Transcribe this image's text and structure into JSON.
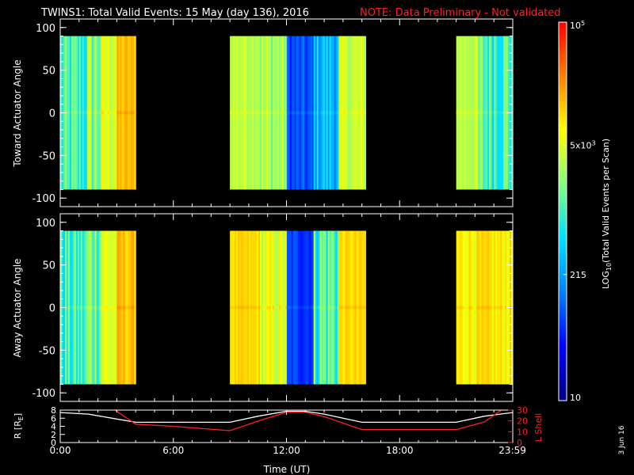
{
  "header": {
    "title": "TWINS1: Total Valid Events: 15 May (day 136), 2016",
    "note": "NOTE: Data Preliminary - Not validated",
    "title_color": "#ffffff",
    "note_color": "#ff2020"
  },
  "footer": {
    "stamp": "3 Jun 16"
  },
  "chart_data": [
    {
      "type": "heatmap",
      "panel": "toward",
      "ylabel": "Toward Actuator Angle",
      "ylim": [
        -110,
        110
      ],
      "yticks": [
        100,
        50,
        0,
        -50,
        -100
      ],
      "xlim": [
        0,
        24
      ],
      "data_angle_range": [
        -90,
        90
      ],
      "segments": [
        {
          "start": 0.0,
          "end": 4.0,
          "profile": "cyan-yellow-orange"
        },
        {
          "start": 9.0,
          "end": 16.2,
          "profile": "yellow-blue-yellow"
        },
        {
          "start": 21.0,
          "end": 24.0,
          "profile": "yellow-cyan"
        }
      ]
    },
    {
      "type": "heatmap",
      "panel": "away",
      "ylabel": "Away Actuator Angle",
      "ylim": [
        -110,
        110
      ],
      "yticks": [
        100,
        50,
        0,
        -50,
        -100
      ],
      "xlim": [
        0,
        24
      ],
      "data_angle_range": [
        -90,
        90
      ],
      "segments": [
        {
          "start": 0.0,
          "end": 4.0,
          "profile": "cyan-yellow-orange"
        },
        {
          "start": 9.0,
          "end": 16.2,
          "profile": "orange-blue-orange"
        },
        {
          "start": 21.0,
          "end": 24.0,
          "profile": "orange"
        }
      ]
    },
    {
      "type": "line",
      "panel": "orbit",
      "ylabel_left": "R [R",
      "ylabel_left_sub": "E",
      "ylabel_left_end": "]",
      "ylabel_right": "L Shell",
      "xlabel": "Time (UT)",
      "xticks": [
        "0:00",
        "6:00",
        "12:00",
        "18:00",
        "23:59"
      ],
      "xtick_hours": [
        0,
        6,
        12,
        18,
        23.983
      ],
      "ylim_left": [
        0,
        8
      ],
      "yticks_left": [
        8,
        6,
        4,
        2,
        0
      ],
      "ylim_right": [
        0,
        30
      ],
      "yticks_right": [
        30,
        20,
        10,
        0
      ],
      "series": [
        {
          "axis": "left",
          "color": "#ffffff",
          "x": [
            0,
            1.5,
            3,
            4,
            6,
            9,
            10.5,
            12,
            13,
            14,
            16,
            18,
            21,
            22.5,
            24
          ],
          "y": [
            7.4,
            7.0,
            5.8,
            5.0,
            5.0,
            5.0,
            6.5,
            7.7,
            7.7,
            7.0,
            5.0,
            5.0,
            5.0,
            6.5,
            7.4
          ]
        },
        {
          "axis": "right",
          "color": "#ff2020",
          "x": [
            2.9,
            4,
            6,
            9,
            10.5,
            12,
            13,
            14,
            16,
            18,
            21,
            22.5,
            23.4
          ],
          "y": [
            30,
            17,
            15,
            11,
            20,
            28,
            28,
            24,
            12,
            12,
            12,
            19,
            30
          ]
        }
      ]
    },
    {
      "type": "colorbar",
      "title": "LOG",
      "title_sub": "10",
      "title_rest": "(Total Valid Events per Scan)",
      "scale": "log",
      "range": [
        10,
        100000
      ],
      "tick_values": [
        10,
        215,
        5000,
        100000
      ],
      "tick_labels": [
        {
          "value": 10,
          "base": "10",
          "exp": ""
        },
        {
          "value": 215,
          "base": "215",
          "exp": ""
        },
        {
          "value": 5000,
          "base": "5x10",
          "exp": "3"
        },
        {
          "value": 100000,
          "base": "10",
          "exp": "5"
        }
      ],
      "colors": [
        "#00007f",
        "#0000ff",
        "#0080ff",
        "#00e0ff",
        "#80ff80",
        "#ffff00",
        "#ff8000",
        "#ff0000"
      ]
    }
  ]
}
